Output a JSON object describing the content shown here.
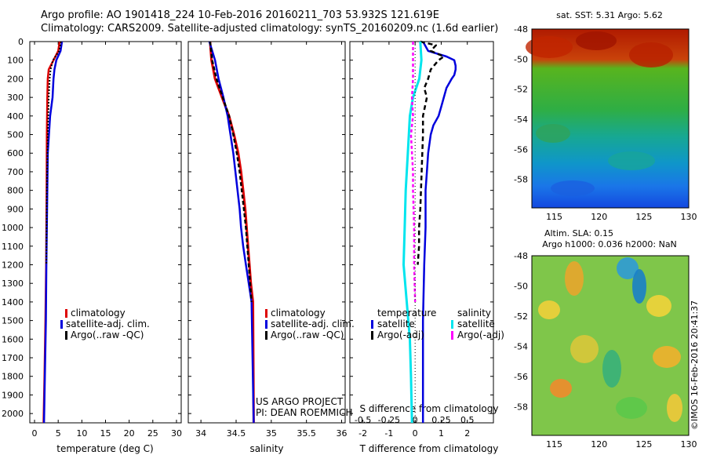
{
  "header": {
    "line1": "Argo profile: AO 1901418_224 10-Feb-2016 20160211_703 53.932S 121.619E",
    "line2": "Climatology: CARS2009. Satellite-adjusted climatology: synTS_20160209.nc (1.6d earlier)"
  },
  "panels": {
    "temperature": {
      "xlabel": "temperature (deg C)",
      "xticks": [
        "0",
        "5",
        "10",
        "15",
        "20",
        "25",
        "30"
      ],
      "legend": [
        "climatology",
        "satellite-adj. clim.",
        "Argo(..raw -QC)"
      ]
    },
    "salinity": {
      "xlabel": "salinity",
      "xticks": [
        "34",
        "34.5",
        "35",
        "35.5",
        "36"
      ],
      "legend": [
        "climatology",
        "satellite-adj. clim.",
        "Argo(..raw -QC)"
      ],
      "credit1": "US ARGO PROJECT",
      "credit2": "PI: DEAN ROEMMICH"
    },
    "difference": {
      "xlabel": "T difference from climatology",
      "xlabel_top": "S difference from climatology",
      "xticks": [
        "-2",
        "-1",
        "0",
        "1",
        "2"
      ],
      "sticks": [
        "-0.5",
        "-0.25",
        "0",
        "0.25",
        "0.5"
      ],
      "legend_temp_title": "temperature",
      "legend_sal_title": "salinity",
      "legend_temp": [
        "satellite",
        "Argo(-adj)"
      ],
      "legend_sal": [
        "satellite",
        "Argo(-adj)"
      ]
    }
  },
  "yticks": [
    "0",
    "100",
    "200",
    "300",
    "400",
    "500",
    "600",
    "700",
    "800",
    "900",
    "1000",
    "1100",
    "1200",
    "1300",
    "1400",
    "1500",
    "1600",
    "1700",
    "1800",
    "1900",
    "2000"
  ],
  "maps": {
    "sst_title": "sat. SST: 5.31  Argo: 5.62",
    "sla_title1": "Altim. SLA: 0.15",
    "sla_title2": "Argo h1000: 0.036 h2000: NaN",
    "lat_ticks": [
      "-48",
      "-50",
      "-52",
      "-54",
      "-56",
      "-58"
    ],
    "lon_ticks": [
      "115",
      "120",
      "125",
      "130"
    ],
    "stamp": "©IMOS 16-Feb-2016 20:41:37"
  },
  "colors": {
    "climatology": "#dd0000",
    "satellite": "#0000dd",
    "argo": "#000000",
    "sat_salinity": "#00e5ee",
    "argo_salinity": "#ff00ff"
  },
  "chart_data": [
    {
      "type": "line",
      "xlabel": "temperature (deg C)",
      "ylim": [
        2050,
        0
      ],
      "xlim": [
        -1,
        31
      ],
      "series": [
        {
          "name": "climatology",
          "depth": [
            0,
            50,
            100,
            150,
            200,
            300,
            500,
            800,
            1000,
            1200,
            1500,
            1800,
            2050
          ],
          "values": [
            5.3,
            5.0,
            4.0,
            3.0,
            2.8,
            2.7,
            2.6,
            2.55,
            2.5,
            2.45,
            2.3,
            2.1,
            1.9
          ]
        },
        {
          "name": "satellite-adj. clim.",
          "depth": [
            0,
            50,
            100,
            150,
            200,
            300,
            400,
            600,
            800,
            1000,
            1200,
            1500,
            2050
          ],
          "values": [
            5.8,
            5.5,
            4.6,
            4.2,
            4.0,
            3.8,
            3.3,
            2.8,
            2.7,
            2.6,
            2.5,
            2.4,
            2.0
          ]
        },
        {
          "name": "Argo(..raw -QC)",
          "depth": [
            0,
            50,
            100,
            150,
            200,
            300,
            500,
            800,
            1000,
            1200
          ],
          "values": [
            5.6,
            5.2,
            3.9,
            3.4,
            3.2,
            3.0,
            2.8,
            2.6,
            2.55,
            2.5
          ]
        }
      ]
    },
    {
      "type": "line",
      "xlabel": "salinity",
      "ylim": [
        2050,
        0
      ],
      "xlim": [
        33.82,
        36.05
      ],
      "series": [
        {
          "name": "climatology",
          "depth": [
            0,
            100,
            200,
            300,
            400,
            500,
            600,
            700,
            800,
            900,
            1000,
            1100,
            1200,
            1300,
            1400,
            2050
          ],
          "values": [
            34.13,
            34.15,
            34.2,
            34.3,
            34.4,
            34.47,
            34.53,
            34.57,
            34.6,
            34.63,
            34.65,
            34.67,
            34.69,
            34.71,
            34.74,
            34.75
          ]
        },
        {
          "name": "satellite-adj. clim.",
          "depth": [
            0,
            100,
            200,
            300,
            400,
            500,
            600,
            700,
            800,
            900,
            1000,
            1100,
            1200,
            1300,
            1400,
            2050
          ],
          "values": [
            34.12,
            34.2,
            34.25,
            34.32,
            34.38,
            34.42,
            34.46,
            34.49,
            34.52,
            34.55,
            34.57,
            34.6,
            34.64,
            34.68,
            34.72,
            34.75
          ]
        },
        {
          "name": "Argo(..raw -QC)",
          "depth": [
            0,
            100,
            200,
            300,
            400,
            500,
            600,
            700,
            800,
            900,
            1000,
            1100,
            1200,
            1300,
            1400
          ],
          "values": [
            34.13,
            34.16,
            34.22,
            34.31,
            34.4,
            34.46,
            34.51,
            34.55,
            34.58,
            34.61,
            34.64,
            34.66,
            34.68,
            34.7,
            34.72
          ]
        }
      ]
    },
    {
      "type": "line",
      "xlabel": "T difference from climatology",
      "ylim": [
        2050,
        0
      ],
      "xlim": [
        -2.5,
        3.0
      ],
      "series": [
        {
          "name": "satellite",
          "depth": [
            0,
            50,
            80,
            100,
            130,
            150,
            180,
            200,
            250,
            350,
            400,
            450,
            500,
            600,
            700,
            800,
            1000,
            1200,
            1500,
            2050
          ],
          "values": [
            0.3,
            0.5,
            1.2,
            1.5,
            1.55,
            1.55,
            1.5,
            1.4,
            1.2,
            1.0,
            0.9,
            0.7,
            0.6,
            0.5,
            0.45,
            0.4,
            0.4,
            0.35,
            0.3,
            0.3
          ]
        },
        {
          "name": "Argo(-adj)",
          "depth": [
            0,
            20,
            50,
            80,
            100,
            150,
            200,
            250,
            300,
            400,
            500,
            700,
            900,
            1000,
            1100,
            1200
          ],
          "values": [
            0.2,
            0.8,
            0.6,
            1.1,
            0.9,
            0.6,
            0.5,
            0.35,
            0.45,
            0.3,
            0.3,
            0.25,
            0.2,
            0.15,
            0.15,
            0.1
          ]
        }
      ]
    }
  ]
}
